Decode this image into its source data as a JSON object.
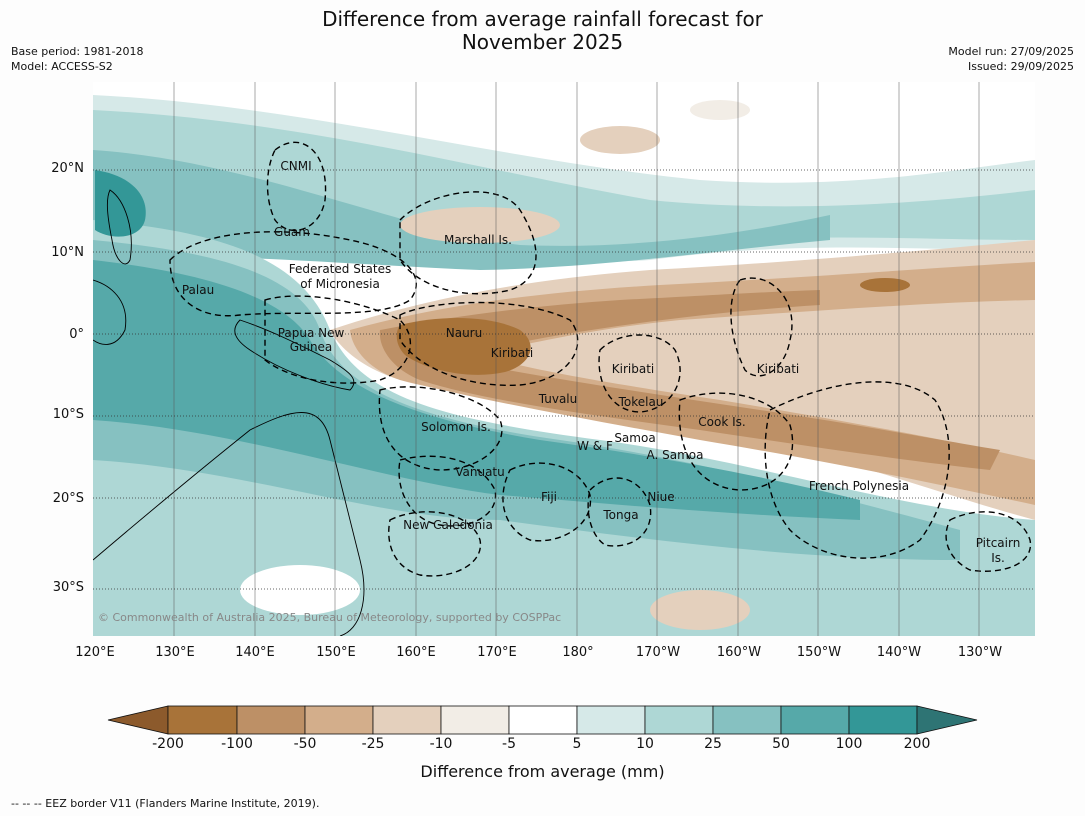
{
  "header": {
    "title_line1": "Difference from average rainfall forecast for",
    "title_line2": "November 2025",
    "base_period": "Base period: 1981-2018",
    "model": "Model: ACCESS-S2",
    "model_run": "Model run: 27/09/2025",
    "issued": "Issued: 29/09/2025"
  },
  "map": {
    "lat_labels": [
      "20°N",
      "10°N",
      "0°",
      "10°S",
      "20°S",
      "30°S"
    ],
    "lon_labels": [
      "120°E",
      "130°E",
      "140°E",
      "150°E",
      "160°E",
      "170°E",
      "180°",
      "170°W",
      "160°W",
      "150°W",
      "140°W",
      "130°W"
    ],
    "places": [
      "CNMI",
      "Guam",
      "Marshall Is.",
      "Federated States",
      "of Micronesia",
      "Palau",
      "Papua New",
      "Guinea",
      "Nauru",
      "Kiribati",
      "Kiribati",
      "Kiribati",
      "Tuvalu",
      "Tokelau",
      "Solomon Is.",
      "Cook Is.",
      "Samoa",
      "W & F",
      "A. Samoa",
      "Vanuatu",
      "Fiji",
      "Niue",
      "Tonga",
      "French Polynesia",
      "New Caledonia",
      "Pitcairn",
      "Is."
    ],
    "copyright": "© Commonwealth of Australia 2025, Bureau of Meteorology, supported by COSPPac"
  },
  "legend": {
    "bins": [
      "-200",
      "-100",
      "-50",
      "-25",
      "-10",
      "-5",
      "5",
      "10",
      "25",
      "50",
      "100",
      "200"
    ],
    "colors": [
      "#8c5a2c",
      "#a87339",
      "#bd9066",
      "#d3ae8b",
      "#e4d0bd",
      "#f2ede6",
      "#ffffff",
      "#d6e9e8",
      "#aed7d5",
      "#86c1c1",
      "#56a9a9",
      "#339797",
      "#2e7474"
    ],
    "title": "Difference from average (mm)"
  },
  "footer": {
    "eez_note": "--  --  -- EEZ border V11 (Flanders Marine Institute, 2019)."
  }
}
